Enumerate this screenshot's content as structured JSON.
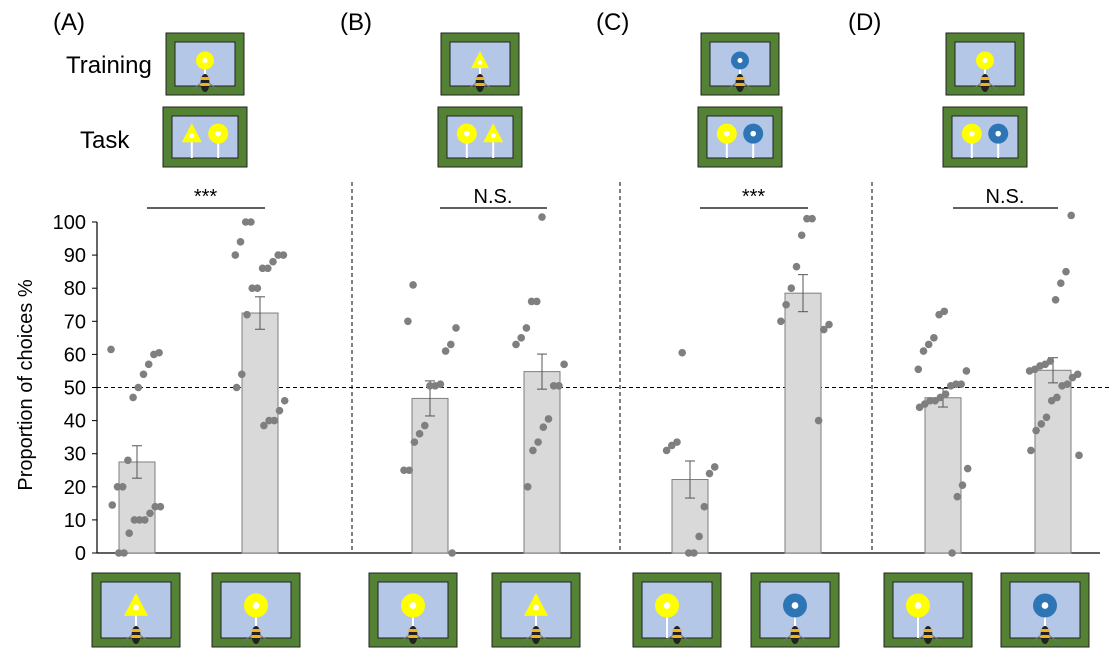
{
  "figure": {
    "row_labels": {
      "training": "Training",
      "task": "Task"
    },
    "y_axis_label": "Proportion of choices  %",
    "reference_line_value": 50,
    "colors": {
      "bar_fill": "#d9d9d9",
      "bar_stroke": "#7f7f7f",
      "dot": "#7f7f7f",
      "frame_green": "#548235",
      "screen_blue": "#b4c7e7",
      "stimulus_yellow": "#ffff00",
      "stimulus_blue": "#2e75b6"
    }
  },
  "chart_data": {
    "type": "bar",
    "yticks": [
      0,
      10,
      20,
      30,
      40,
      50,
      60,
      70,
      80,
      90,
      100
    ],
    "ylim": [
      0,
      100
    ],
    "grid": false,
    "panels": [
      {
        "label": "(A)",
        "training_stimuli": [
          "yellow-circle"
        ],
        "task_stimuli": [
          "yellow-triangle",
          "yellow-circle"
        ],
        "significance": "***",
        "bars": [
          {
            "stimulus": "yellow-triangle",
            "mean": 27.5,
            "error": 4.9,
            "points": [
              61.5,
              60.5,
              60,
              57,
              54,
              50,
              47,
              28,
              20,
              20,
              14.5,
              14,
              14,
              12,
              10,
              10,
              10,
              6,
              0,
              0
            ]
          },
          {
            "stimulus": "yellow-circle",
            "mean": 72.5,
            "error": 4.9,
            "points": [
              100,
              100,
              94,
              90,
              90,
              90,
              88,
              86,
              86,
              80,
              80,
              72,
              54,
              50,
              46,
              43,
              40,
              40,
              38.5
            ]
          }
        ]
      },
      {
        "label": "(B)",
        "training_stimuli": [
          "yellow-triangle"
        ],
        "task_stimuli": [
          "yellow-circle",
          "yellow-triangle"
        ],
        "significance": "N.S.",
        "bars": [
          {
            "stimulus": "yellow-circle",
            "mean": 46.7,
            "error": 5.3,
            "points": [
              81,
              70,
              68,
              63,
              61,
              51,
              50.5,
              50.5,
              38.5,
              36,
              33.5,
              25,
              25,
              0
            ]
          },
          {
            "stimulus": "yellow-triangle",
            "mean": 54.8,
            "error": 5.3,
            "points": [
              101.5,
              76,
              76,
              68,
              65,
              63,
              57,
              50.5,
              50.5,
              40.5,
              38,
              33.5,
              31,
              20
            ]
          }
        ]
      },
      {
        "label": "(C)",
        "training_stimuli": [
          "blue-ring"
        ],
        "task_stimuli": [
          "yellow-circle",
          "blue-ring"
        ],
        "significance": "***",
        "bars": [
          {
            "stimulus": "yellow-circle",
            "mean": 22.2,
            "error": 5.6,
            "points": [
              60.5,
              33.5,
              32.5,
              31,
              26,
              24,
              14,
              5,
              0,
              0
            ]
          },
          {
            "stimulus": "blue-ring",
            "mean": 78.5,
            "error": 5.6,
            "points": [
              101,
              101,
              96,
              86.5,
              80,
              75,
              70,
              69,
              67.5,
              40
            ]
          }
        ]
      },
      {
        "label": "(D)",
        "training_stimuli": [
          "yellow-circle"
        ],
        "task_stimuli": [
          "yellow-circle",
          "blue-ring"
        ],
        "significance": "N.S.",
        "bars": [
          {
            "stimulus": "yellow-circle",
            "mean": 46.9,
            "error": 2.8,
            "points": [
              73,
              72,
              65,
              63,
              61,
              55.5,
              55,
              51,
              51,
              50.5,
              48,
              47,
              46,
              46,
              45,
              44,
              25.5,
              20.5,
              17,
              0
            ]
          },
          {
            "stimulus": "blue-ring",
            "mean": 55.2,
            "error": 3.8,
            "points": [
              102,
              85,
              81.5,
              76.5,
              58,
              57,
              56.5,
              55.5,
              55,
              54,
              53,
              51,
              50.5,
              47,
              46,
              41,
              39,
              37,
              31,
              29.5
            ]
          }
        ]
      }
    ]
  }
}
